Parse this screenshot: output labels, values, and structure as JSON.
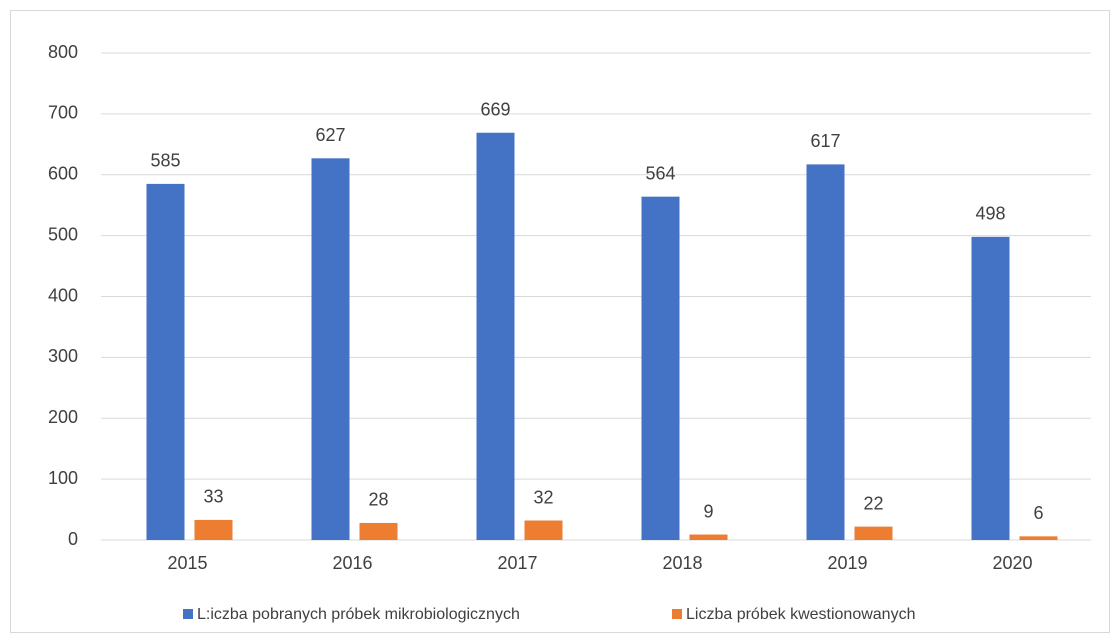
{
  "chart_data": {
    "type": "bar",
    "categories": [
      "2015",
      "2016",
      "2017",
      "2018",
      "2019",
      "2020"
    ],
    "series": [
      {
        "name": "L:iczba pobranych próbek mikrobiologicznych",
        "color": "#4472c4",
        "values": [
          585,
          627,
          669,
          564,
          617,
          498
        ]
      },
      {
        "name": "Liczba próbek kwestionowanych",
        "color": "#ed7d31",
        "values": [
          33,
          28,
          32,
          9,
          22,
          6
        ]
      }
    ],
    "ylim": [
      0,
      800
    ],
    "yticks": [
      0,
      100,
      200,
      300,
      400,
      500,
      600,
      700,
      800
    ],
    "grid": true,
    "legend": "bottom"
  }
}
